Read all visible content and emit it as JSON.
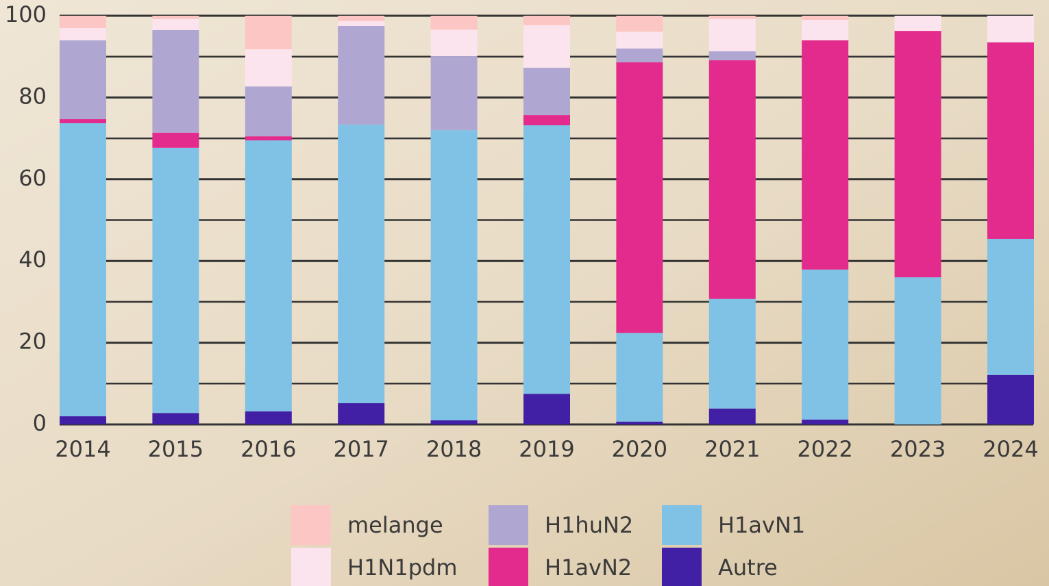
{
  "chart_data": {
    "type": "stacked_bar",
    "categories": [
      "2014",
      "2015",
      "2016",
      "2017",
      "2018",
      "2019",
      "2020",
      "2021",
      "2022",
      "2023",
      "2024"
    ],
    "series": [
      {
        "name": "Autre",
        "color": "#4120a6",
        "values": [
          2.0,
          2.8,
          3.2,
          5.2,
          1.0,
          7.5,
          0.7,
          3.9,
          1.2,
          0,
          12.1
        ]
      },
      {
        "name": "H1avN1",
        "color": "#80c1e6",
        "values": [
          71.7,
          64.9,
          66.3,
          68.2,
          71.0,
          65.7,
          21.7,
          26.8,
          36.7,
          36.0,
          33.3
        ]
      },
      {
        "name": "H1avN2",
        "color": "#e22b8c",
        "values": [
          1.0,
          3.7,
          1.0,
          0,
          0,
          2.5,
          66.2,
          58.4,
          56.1,
          60.3,
          48.1
        ]
      },
      {
        "name": "H1huN2",
        "color": "#b0a6d2",
        "values": [
          19.3,
          25.1,
          12.2,
          24.1,
          18.1,
          11.6,
          3.4,
          2.2,
          0,
          0,
          0
        ]
      },
      {
        "name": "H1N1pdm",
        "color": "#fce4ef",
        "values": [
          3.0,
          2.7,
          9.1,
          1.2,
          6.5,
          10.4,
          4.1,
          7.9,
          5.0,
          3.7,
          6.5
        ]
      },
      {
        "name": "melange",
        "color": "#fbc6c3",
        "values": [
          3.0,
          0.8,
          8.2,
          1.3,
          3.4,
          2.3,
          3.9,
          0.8,
          1.0,
          0,
          0
        ]
      }
    ],
    "ylim": [
      0,
      100
    ],
    "yticks": [
      0,
      20,
      40,
      60,
      80,
      100
    ],
    "minor_yticks": [
      10,
      30,
      50,
      70,
      90
    ],
    "grid": true
  }
}
